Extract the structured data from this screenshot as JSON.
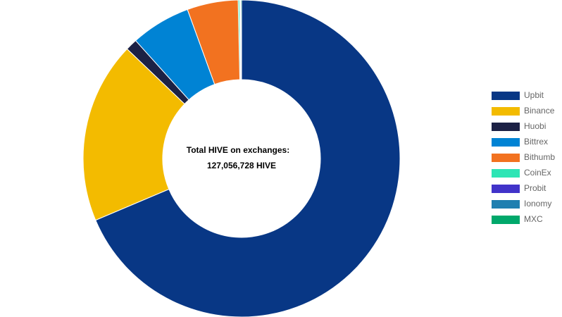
{
  "chart_data": {
    "type": "doughnut",
    "center_text": [
      "Total HIVE on exchanges:",
      "127,056,728 HIVE"
    ],
    "categories": [
      "Upbit",
      "Binance",
      "Huobi",
      "Bittrex",
      "Bithumb",
      "CoinEx",
      "Probit",
      "Ionomy",
      "MXC"
    ],
    "values": [
      68.6,
      18.5,
      1.2,
      6.1,
      5.2,
      0.15,
      0.05,
      0.05,
      0.1
    ],
    "colors": [
      "#083785",
      "#f3bb00",
      "#1c2145",
      "#0083d4",
      "#f27220",
      "#2ee5b5",
      "#4133c9",
      "#1f7fb0",
      "#00a86b"
    ],
    "legend": "right"
  }
}
